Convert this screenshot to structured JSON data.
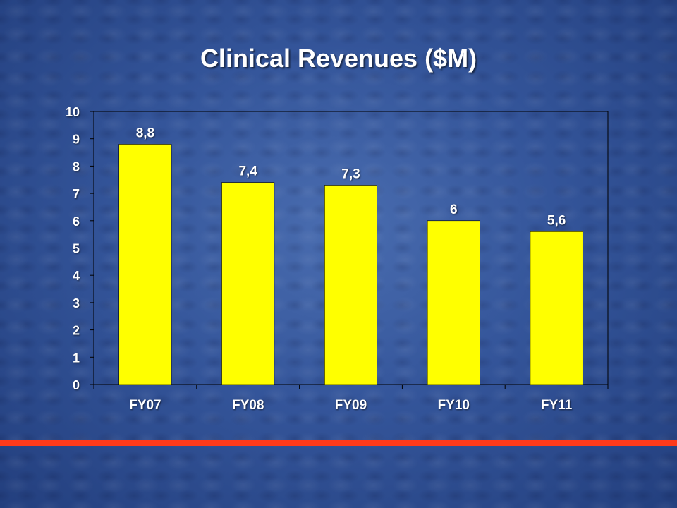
{
  "slide": {
    "title": "Clinical Revenues ($M)"
  },
  "colors": {
    "bar": "#ffff00",
    "text": "#ffffff",
    "accent_line": "#ff3a1a"
  },
  "chart_data": {
    "type": "bar",
    "title": "Clinical Revenues ($M)",
    "xlabel": "",
    "ylabel": "",
    "categories": [
      "FY07",
      "FY08",
      "FY09",
      "FY10",
      "FY11"
    ],
    "values": [
      8.8,
      7.4,
      7.3,
      6,
      5.6
    ],
    "data_labels": [
      "8,8",
      "7,4",
      "7,3",
      "6",
      "5,6"
    ],
    "ylim": [
      0,
      10
    ],
    "yticks": [
      0,
      1,
      2,
      3,
      4,
      5,
      6,
      7,
      8,
      9,
      10
    ],
    "grid": false,
    "legend": "none"
  }
}
